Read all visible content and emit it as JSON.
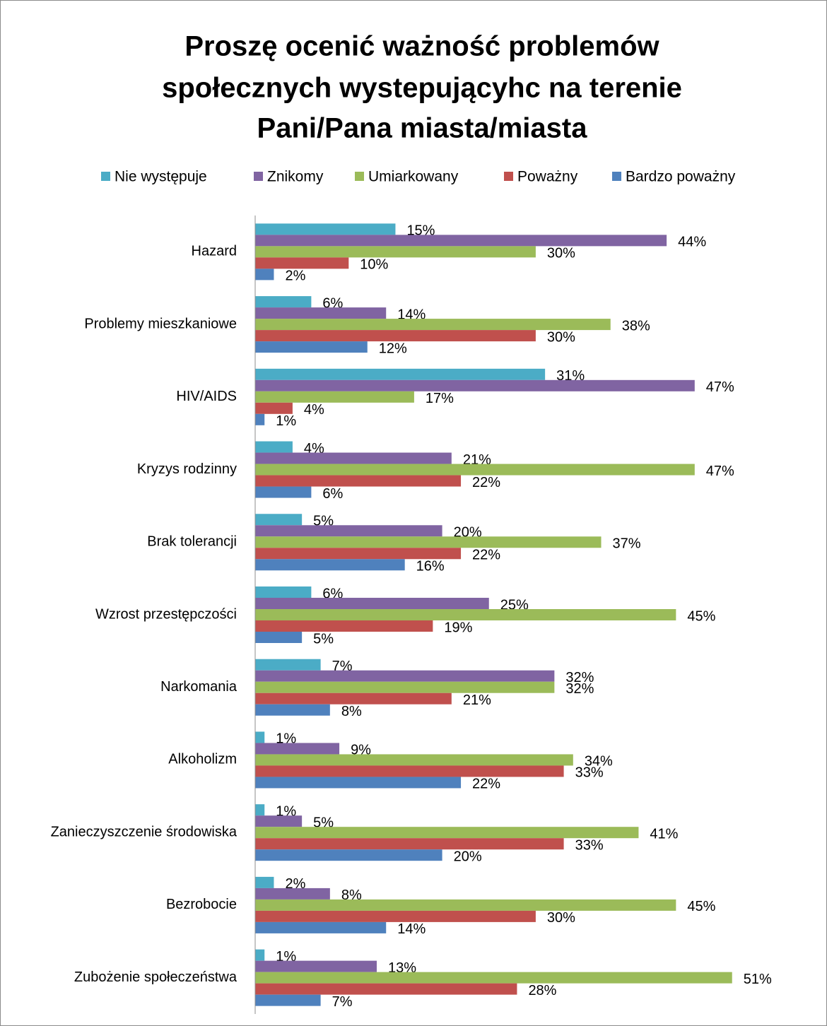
{
  "chart_data": {
    "type": "hbar",
    "title": [
      "Proszę ocenić ważność problemów",
      "społecznych wystepującyhc na terenie",
      "Pani/Pana miasta/miasta"
    ],
    "categories": [
      "Hazard",
      "Problemy mieszkaniowe",
      "HIV/AIDS",
      "Kryzys rodzinny",
      "Brak tolerancji",
      "Wzrost przestępczości",
      "Narkomania",
      "Alkoholizm",
      "Zanieczyszczenie środowiska",
      "Bezrobocie",
      "Zubożenie społeczeństwa"
    ],
    "xlim": [
      0,
      55
    ],
    "legend": "top",
    "series": [
      {
        "name": "Nie występuje",
        "color": "#4bacc6",
        "values": [
          15,
          6,
          31,
          4,
          5,
          6,
          7,
          1,
          1,
          2,
          1
        ],
        "value_labels": [
          "15%",
          "6%",
          "31%",
          "4%",
          "5%",
          "6%",
          "7%",
          "1%",
          "1%",
          "2%",
          "1%"
        ]
      },
      {
        "name": "Znikomy",
        "color": "#8064a2",
        "values": [
          44,
          14,
          47,
          21,
          20,
          25,
          32,
          9,
          5,
          8,
          13
        ],
        "value_labels": [
          "44%",
          "14%",
          "47%",
          "21%",
          "20%",
          "25%",
          "32%",
          "9%",
          "5%",
          "8%",
          "13%"
        ]
      },
      {
        "name": "Umiarkowany",
        "color": "#9bbb59",
        "values": [
          30,
          38,
          17,
          47,
          37,
          45,
          32,
          34,
          41,
          45,
          51
        ],
        "value_labels": [
          "30%",
          "38%",
          "17%",
          "47%",
          "37%",
          "45%",
          "32%",
          "34%",
          "41%",
          "45%",
          "51%"
        ]
      },
      {
        "name": "Poważny",
        "color": "#c0504d",
        "values": [
          10,
          30,
          4,
          22,
          22,
          19,
          21,
          33,
          33,
          30,
          28
        ],
        "value_labels": [
          "10%",
          "30%",
          "4%",
          "22%",
          "22%",
          "19%",
          "21%",
          "33%",
          "33%",
          "30%",
          "28%"
        ]
      },
      {
        "name": "Bardzo poważny",
        "color": "#4f81bd",
        "values": [
          2,
          12,
          1,
          6,
          16,
          5,
          8,
          22,
          20,
          14,
          7
        ],
        "value_labels": [
          "2%",
          "12%",
          "1%",
          "6%",
          "16%",
          "5%",
          "8%",
          "22%",
          "20%",
          "14%",
          "7%"
        ]
      }
    ]
  }
}
